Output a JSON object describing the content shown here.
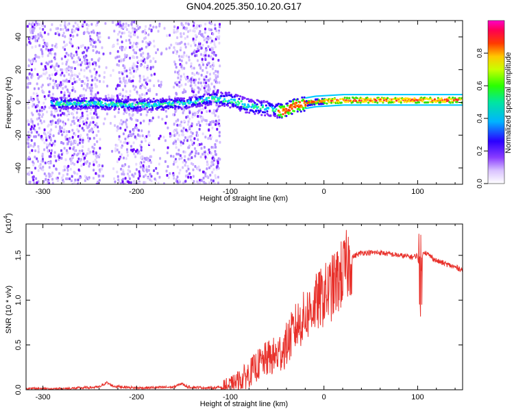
{
  "title": "GN04.2025.350.10.20.G17",
  "chart_data": [
    {
      "type": "heatmap",
      "name": "spectrogram",
      "xlabel": "Height of straight line (km)",
      "ylabel": "Frequency (Hz)",
      "xlim": [
        -318,
        148
      ],
      "ylim": [
        -50,
        50
      ],
      "x_ticks": [
        -300,
        -200,
        -100,
        0,
        100
      ],
      "x_tick_labels": [
        "-300",
        "-200",
        "-100",
        "0",
        "100"
      ],
      "y_ticks": [
        -40,
        -20,
        0,
        20,
        40
      ],
      "y_tick_labels": [
        "-40",
        "-20",
        "0",
        "20",
        "40"
      ],
      "colorbar": {
        "label": "Normalized spectral amplitude",
        "range": [
          0,
          1
        ],
        "ticks": [
          0.0,
          0.2,
          0.4,
          0.6,
          0.8
        ],
        "tick_labels": [
          "0.0",
          "0.2",
          "0.4",
          "0.6",
          "0.8"
        ],
        "colors": [
          "#ffffff",
          "#b48cff",
          "#6a00ff",
          "#0000ff",
          "#00c8ff",
          "#00ff00",
          "#ffff00",
          "#ff8000",
          "#ff0000",
          "#ff00ff"
        ]
      },
      "ridge": [
        {
          "x": -290,
          "f": 0
        },
        {
          "x": -250,
          "f": 0
        },
        {
          "x": -200,
          "f": -1
        },
        {
          "x": -150,
          "f": 0
        },
        {
          "x": -120,
          "f": 3
        },
        {
          "x": -100,
          "f": 2
        },
        {
          "x": -80,
          "f": -2
        },
        {
          "x": -60,
          "f": -3
        },
        {
          "x": -45,
          "f": -5
        },
        {
          "x": -30,
          "f": -1
        },
        {
          "x": -10,
          "f": 1
        },
        {
          "x": 20,
          "f": 2
        },
        {
          "x": 60,
          "f": 2
        },
        {
          "x": 100,
          "f": 2
        },
        {
          "x": 148,
          "f": 2
        }
      ]
    },
    {
      "type": "line",
      "name": "snr",
      "xlabel": "Height of straight line (km)",
      "ylabel": "SNR (10 * v/v)",
      "y_multiplier_label": "(x10",
      "y_multiplier_exp": "4",
      "y_multiplier_close": ")",
      "xlim": [
        -318,
        148
      ],
      "ylim": [
        0,
        1.85
      ],
      "x_ticks": [
        -300,
        -200,
        -100,
        0,
        100
      ],
      "x_tick_labels": [
        "-300",
        "-200",
        "-100",
        "0",
        "100"
      ],
      "y_ticks": [
        0,
        0.5,
        1.0,
        1.5
      ],
      "y_tick_labels": [
        "0.0",
        "0.5",
        "1.0",
        "1.5"
      ],
      "color": "#e8302a",
      "series": {
        "name": "SNR",
        "x": [
          -318,
          -280,
          -240,
          -232,
          -225,
          -200,
          -160,
          -152,
          -145,
          -120,
          -100,
          -90,
          -80,
          -70,
          -60,
          -50,
          -40,
          -30,
          -20,
          -10,
          0,
          10,
          20,
          30,
          40,
          60,
          80,
          95,
          100,
          103,
          106,
          120,
          148
        ],
        "y": [
          0.01,
          0.01,
          0.03,
          0.08,
          0.04,
          0.02,
          0.03,
          0.07,
          0.03,
          0.02,
          0.04,
          0.1,
          0.18,
          0.28,
          0.35,
          0.38,
          0.5,
          0.7,
          0.82,
          0.95,
          1.05,
          1.15,
          1.3,
          1.48,
          1.53,
          1.53,
          1.5,
          1.48,
          1.5,
          1.25,
          1.55,
          1.44,
          1.34
        ]
      }
    }
  ]
}
